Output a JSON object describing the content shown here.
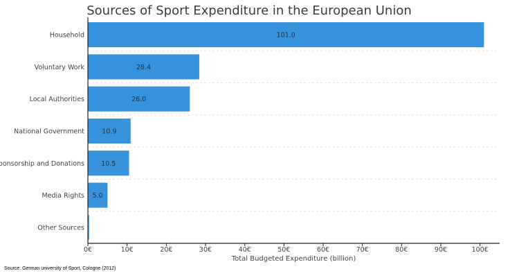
{
  "chart_data": {
    "type": "bar",
    "orientation": "horizontal",
    "title": "Sources of Sport Expenditure in the European Union",
    "xlabel": "Total Budgeted Expenditure (billion)",
    "ylabel": "",
    "categories": [
      "Household",
      "Voluntary Work",
      "Local Authorities",
      "National Government",
      "Sponsorship and Donations",
      "Media Rights",
      "Other Sources"
    ],
    "values": [
      101.0,
      28.4,
      26.0,
      10.9,
      10.5,
      5.0,
      0.3
    ],
    "data_labels": [
      "101.0",
      "28.4",
      "26.0",
      "10.9",
      "10.5",
      "5.0",
      ""
    ],
    "xlim": [
      0,
      105
    ],
    "x_ticks": [
      0,
      10,
      20,
      30,
      40,
      50,
      60,
      70,
      80,
      90,
      100
    ],
    "x_tick_labels": [
      "0€",
      "10€",
      "20€",
      "30€",
      "40€",
      "50€",
      "60€",
      "70€",
      "80€",
      "90€",
      "100€"
    ],
    "bar_color": "#3592db",
    "grid": "horizontal-dashed",
    "legend": "none"
  },
  "source_note": "Source: German university of Sport, Cologne (2012)"
}
